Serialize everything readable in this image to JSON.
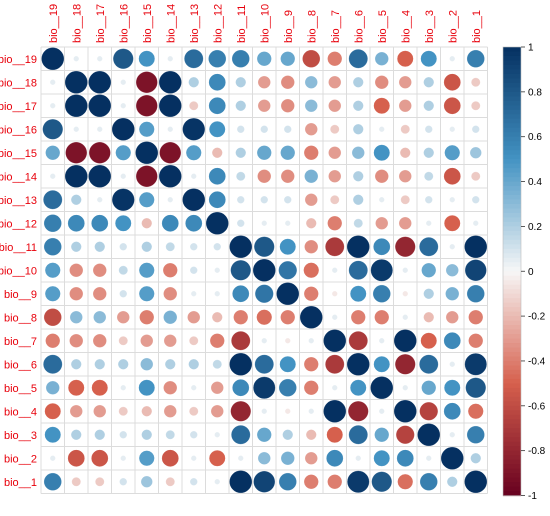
{
  "chart_data": {
    "type": "heatmap",
    "variables": [
      "bio__19",
      "bio__18",
      "bio__17",
      "bio__16",
      "bio__15",
      "bio__14",
      "bio__13",
      "bio__12",
      "bio__11",
      "bio__10",
      "bio__9",
      "bio__8",
      "bio__7",
      "bio__6",
      "bio__5",
      "bio__4",
      "bio__3",
      "bio__2",
      "bio__1"
    ],
    "column_labels": [
      "bio__19",
      "bio__18",
      "bio__17",
      "bio__16",
      "bio__15",
      "bio__14",
      "bio__13",
      "bio__12",
      "bio__11",
      "bio__10",
      "bio__9",
      "bio__8",
      "bio__7",
      "bio__6",
      "bio__5",
      "bio__4",
      "bio__3",
      "bio__2",
      "bio__1"
    ],
    "row_labels": [
      "bio__19",
      "bio__18",
      "bio__17",
      "bio__16",
      "bio__15",
      "bio__14",
      "bio__13",
      "bio__12",
      "bio__11",
      "bio__10",
      "bio__9",
      "bio__8",
      "bio__7",
      "bio__6",
      "bio__5",
      "bio__4",
      "bio__3",
      "bio__2",
      "bio__1"
    ],
    "matrix": [
      [
        1.0,
        0.05,
        0.05,
        0.8,
        0.5,
        0.05,
        0.7,
        0.6,
        0.6,
        0.4,
        0.4,
        -0.6,
        -0.4,
        0.7,
        0.35,
        -0.5,
        0.5,
        0.05,
        0.6
      ],
      [
        0.05,
        1.0,
        1.0,
        0.05,
        -0.9,
        1.0,
        0.2,
        0.55,
        0.2,
        -0.3,
        -0.35,
        0.3,
        -0.3,
        0.2,
        -0.35,
        -0.3,
        0.2,
        -0.55,
        -0.15
      ],
      [
        0.05,
        1.0,
        1.0,
        0.05,
        -0.9,
        1.0,
        -0.15,
        0.55,
        0.2,
        -0.3,
        -0.35,
        0.3,
        -0.3,
        0.2,
        -0.5,
        -0.3,
        0.2,
        -0.55,
        -0.15
      ],
      [
        0.8,
        0.05,
        0.05,
        1.0,
        0.45,
        0.05,
        0.98,
        0.5,
        0.1,
        0.1,
        0.1,
        -0.3,
        -0.15,
        0.2,
        0.05,
        -0.15,
        0.1,
        0.05,
        0.1
      ],
      [
        0.4,
        -0.9,
        -0.9,
        0.45,
        1.0,
        -0.9,
        0.45,
        -0.2,
        0.2,
        0.4,
        0.4,
        -0.4,
        -0.3,
        0.3,
        0.5,
        -0.2,
        0.2,
        0.45,
        0.25
      ],
      [
        0.05,
        1.0,
        1.0,
        0.05,
        -0.9,
        1.0,
        0.05,
        0.55,
        0.15,
        -0.35,
        -0.35,
        0.35,
        -0.3,
        0.2,
        -0.35,
        -0.3,
        0.15,
        -0.55,
        -0.15
      ],
      [
        0.7,
        0.2,
        0.05,
        0.98,
        0.45,
        0.05,
        1.0,
        0.55,
        0.1,
        0.1,
        0.1,
        -0.3,
        -0.15,
        0.2,
        0.05,
        -0.15,
        0.1,
        0.05,
        0.1
      ],
      [
        0.6,
        0.55,
        0.55,
        0.5,
        -0.2,
        0.55,
        0.55,
        1.0,
        0.1,
        0.05,
        0.05,
        -0.2,
        -0.4,
        0.15,
        -0.3,
        -0.3,
        0.05,
        -0.5,
        0.05
      ],
      [
        0.6,
        0.2,
        0.2,
        0.1,
        0.2,
        0.15,
        0.1,
        0.1,
        1.0,
        0.8,
        0.5,
        -0.35,
        -0.7,
        1.0,
        0.55,
        -0.8,
        0.7,
        0.05,
        1.0
      ],
      [
        0.45,
        -0.35,
        -0.35,
        0.15,
        0.45,
        -0.4,
        0.1,
        0.05,
        0.8,
        1.0,
        0.65,
        -0.45,
        0.05,
        0.7,
        0.95,
        0.05,
        0.4,
        0.3,
        0.9
      ],
      [
        0.45,
        -0.35,
        -0.35,
        0.1,
        0.45,
        -0.35,
        0.05,
        0.05,
        0.55,
        0.65,
        1.0,
        -0.4,
        -0.05,
        0.5,
        0.6,
        -0.05,
        0.2,
        0.35,
        0.6
      ],
      [
        -0.6,
        0.3,
        0.3,
        -0.3,
        -0.4,
        0.35,
        -0.3,
        -0.2,
        -0.4,
        -0.45,
        -0.4,
        1.0,
        0.05,
        -0.4,
        -0.4,
        0.05,
        -0.2,
        -0.3,
        -0.4
      ],
      [
        -0.4,
        -0.35,
        -0.35,
        -0.15,
        -0.3,
        -0.3,
        -0.15,
        -0.4,
        -0.7,
        0.05,
        -0.05,
        0.05,
        1.0,
        -0.7,
        0.05,
        1.0,
        -0.5,
        0.55,
        -0.4
      ],
      [
        0.7,
        0.2,
        0.2,
        0.2,
        0.3,
        0.2,
        0.2,
        0.15,
        1.0,
        0.7,
        0.5,
        -0.4,
        -0.7,
        1.0,
        0.5,
        -0.8,
        0.7,
        0.05,
        0.95
      ],
      [
        0.35,
        -0.5,
        -0.5,
        0.05,
        0.5,
        -0.35,
        0.05,
        -0.3,
        0.55,
        0.95,
        0.6,
        -0.4,
        0.05,
        0.5,
        1.0,
        0.05,
        0.4,
        0.5,
        0.8
      ],
      [
        -0.5,
        -0.3,
        -0.3,
        -0.15,
        -0.2,
        -0.3,
        -0.15,
        -0.3,
        -0.8,
        0.05,
        -0.05,
        0.05,
        1.0,
        -0.8,
        0.05,
        1.0,
        -0.65,
        0.55,
        -0.45
      ],
      [
        0.5,
        0.2,
        0.2,
        0.1,
        0.2,
        0.15,
        0.1,
        0.05,
        0.7,
        0.4,
        0.2,
        -0.2,
        -0.5,
        0.7,
        0.4,
        -0.65,
        1.0,
        0.05,
        0.6
      ],
      [
        0.05,
        -0.55,
        -0.55,
        0.05,
        0.45,
        -0.55,
        0.05,
        -0.5,
        0.05,
        0.3,
        0.35,
        -0.3,
        0.55,
        0.05,
        0.5,
        0.55,
        0.05,
        1.0,
        0.2
      ],
      [
        0.6,
        -0.15,
        -0.15,
        0.1,
        0.25,
        -0.15,
        0.1,
        0.05,
        1.0,
        0.9,
        0.6,
        -0.4,
        -0.4,
        0.95,
        0.8,
        -0.45,
        0.6,
        0.2,
        1.0
      ]
    ],
    "colorbar": {
      "range": [
        -1,
        1
      ],
      "ticks": [
        "1",
        "0.8",
        "0.6",
        "0.4",
        "0.2",
        "0",
        "-0.2",
        "-0.4",
        "-0.6",
        "-0.8",
        "-1"
      ]
    },
    "label_color": "#e8000b",
    "palette": {
      "negative_strong": "#67001f",
      "negative_mid": "#d6604d",
      "neutral": "#f7f7f7",
      "positive_mid": "#4393c3",
      "positive_strong": "#053061"
    },
    "grid": true,
    "glyph": "circle",
    "legend_position": "right"
  }
}
